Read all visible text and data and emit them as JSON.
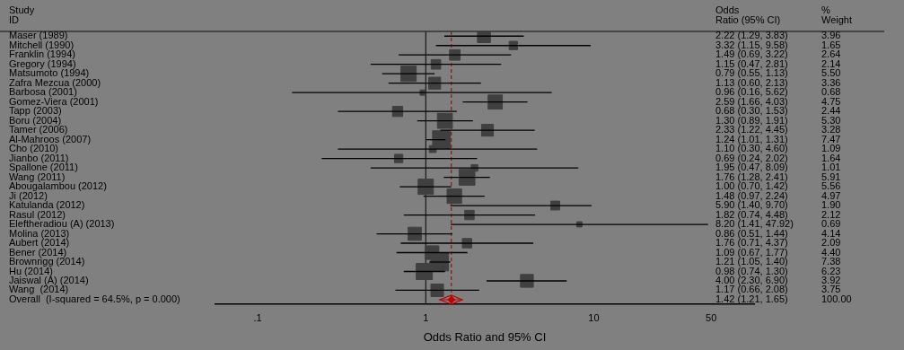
{
  "chart_data": {
    "type": "bubble",
    "orientation": "horizontal",
    "ylabel": "Study\nID",
    "xlabel": "Odds Ratio and 95% CI",
    "log": "x",
    "marker": "square",
    "categories": [
      "Maser (1989)",
      "Mitchell (1990)",
      "Franklin (1994)",
      "Gregory (1994)",
      "Matsumoto (1994)",
      "Zafra Mezcua (2000)",
      "Barbosa (2001)",
      "Gomez-Viera (2001)",
      "Tapp (2003)",
      "Boru (2004)",
      "Tamer (2006)",
      "Al-Mahroos (2007)",
      "Cho (2010)",
      "Jianbo (2011)",
      "Spallone (2011)",
      "Wang (2011)",
      "Abougalambou (2012)",
      "Ji (2012)",
      "Katulanda (2012)",
      "Rasul (2012)",
      "Eleftheradiou (A) (2013)",
      "Molina (2013)",
      "Aubert (2014)",
      "Bener (2014)",
      "Brownrigg (2014)",
      "Hu (2014)",
      "Jaiswal (A) (2014)",
      "Wang  (2014)",
      "Overall  (I-squared = 64.5%, p = 0.000)"
    ],
    "xlim": [
      0.056,
      90
    ],
    "xticks": [
      {
        "value": 0.1,
        "label": ".1"
      },
      1,
      10,
      50
    ],
    "series": [
      {
        "color": "#404040",
        "values": [
          2.22,
          3.32,
          1.49,
          1.15,
          0.79,
          1.13,
          0.96,
          2.59,
          0.68,
          1.3,
          2.33,
          1.24,
          1.1,
          0.69,
          1.95,
          1.76,
          1.0,
          1.48,
          5.9,
          1.82,
          8.2,
          0.86,
          1.76,
          1.09,
          1.21,
          0.98,
          4.0,
          1.17,
          null
        ],
        "errors": [
          [
            1.29,
            3.83
          ],
          [
            1.15,
            9.58
          ],
          [
            0.69,
            3.22
          ],
          [
            0.47,
            2.81
          ],
          [
            0.55,
            1.13
          ],
          [
            0.6,
            2.13
          ],
          [
            0.16,
            5.62
          ],
          [
            1.66,
            4.03
          ],
          [
            0.3,
            1.53
          ],
          [
            0.89,
            1.91
          ],
          [
            1.22,
            4.45
          ],
          [
            1.01,
            1.31
          ],
          [
            0.3,
            4.6
          ],
          [
            0.24,
            2.02
          ],
          [
            0.47,
            8.09
          ],
          [
            1.28,
            2.41
          ],
          [
            0.7,
            1.42
          ],
          [
            0.97,
            2.24
          ],
          [
            1.4,
            9.7
          ],
          [
            0.74,
            4.48
          ],
          [
            1.41,
            47.92
          ],
          [
            0.51,
            1.44
          ],
          [
            0.71,
            4.37
          ],
          [
            0.67,
            1.77
          ],
          [
            1.05,
            1.4
          ],
          [
            0.74,
            1.3
          ],
          [
            2.3,
            6.9
          ],
          [
            0.66,
            2.08
          ],
          null
        ],
        "sizes": [
          0.53,
          0.22,
          0.35,
          0.29,
          0.74,
          0.45,
          0.09,
          0.64,
          0.33,
          0.71,
          0.44,
          1,
          0.15,
          0.22,
          0.14,
          0.79,
          0.74,
          0.67,
          0.25,
          0.28,
          0.09,
          0.55,
          0.28,
          0.59,
          0.99,
          0.83,
          0.52,
          0.5,
          null
        ]
      },
      {
        "type": "scatter",
        "marker": "diamond",
        "color": "#c00000",
        "values": [
          null,
          null,
          null,
          null,
          null,
          null,
          null,
          null,
          null,
          null,
          null,
          null,
          null,
          null,
          null,
          null,
          null,
          null,
          null,
          null,
          null,
          null,
          null,
          null,
          null,
          null,
          null,
          null,
          1.42
        ],
        "errors": [
          null,
          null,
          null,
          null,
          null,
          null,
          null,
          null,
          null,
          null,
          null,
          null,
          null,
          null,
          null,
          null,
          null,
          null,
          null,
          null,
          null,
          null,
          null,
          null,
          null,
          null,
          null,
          null,
          [
            1.21,
            1.65
          ]
        ]
      }
    ],
    "ref_lines": [
      {
        "axis": "x",
        "value": 1,
        "color": "#000000",
        "line_style": "solid"
      },
      {
        "axis": "x",
        "value": 1.42,
        "color": "#8b0000",
        "line_style": "dashed"
      }
    ],
    "annotations": [
      "Odds\nRatio (95% CI)",
      "%\nWeight",
      "2.22 (1.29, 3.83)",
      "3.32 (1.15, 9.58)",
      "1.49 (0.69, 3.22)",
      "1.15 (0.47, 2.81)",
      "0.79 (0.55, 1.13)",
      "1.13 (0.60, 2.13)",
      "0.96 (0.16, 5.62)",
      "2.59 (1.66, 4.03)",
      "0.68 (0.30, 1.53)",
      "1.30 (0.89, 1.91)",
      "2.33 (1.22, 4.45)",
      "1.24 (1.01, 1.31)",
      "1.10 (0.30, 4.60)",
      "0.69 (0.24, 2.02)",
      "1.95 (0.47, 8.09)",
      "1.76 (1.28, 2.41)",
      "1.00 (0.70, 1.42)",
      "1.48 (0.97, 2.24)",
      "5.90 (1.40, 9.70)",
      "1.82 (0.74, 4.48)",
      "8.20 (1.41, 47.92)",
      "0.86 (0.51, 1.44)",
      "1.76 (0.71, 4.37)",
      "1.09 (0.67, 1.77)",
      "1.21 (1.05, 1.40)",
      "0.98 (0.74, 1.30)",
      "4.00 (2.30, 6.90)",
      "1.17 (0.66, 2.08)",
      "1.42 (1.21, 1.65)",
      "3.96",
      "1.65",
      "2.64",
      "2.14",
      "5.50",
      "3.36",
      "0.68",
      "4.75",
      "2.44",
      "5.30",
      "3.28",
      "7.47",
      "1.09",
      "1.64",
      "1.01",
      "5.91",
      "5.56",
      "4.97",
      "1.90",
      "2.12",
      "0.69",
      "4.14",
      "2.09",
      "4.40",
      "7.38",
      "6.23",
      "3.92",
      "3.75",
      "100.00"
    ]
  }
}
